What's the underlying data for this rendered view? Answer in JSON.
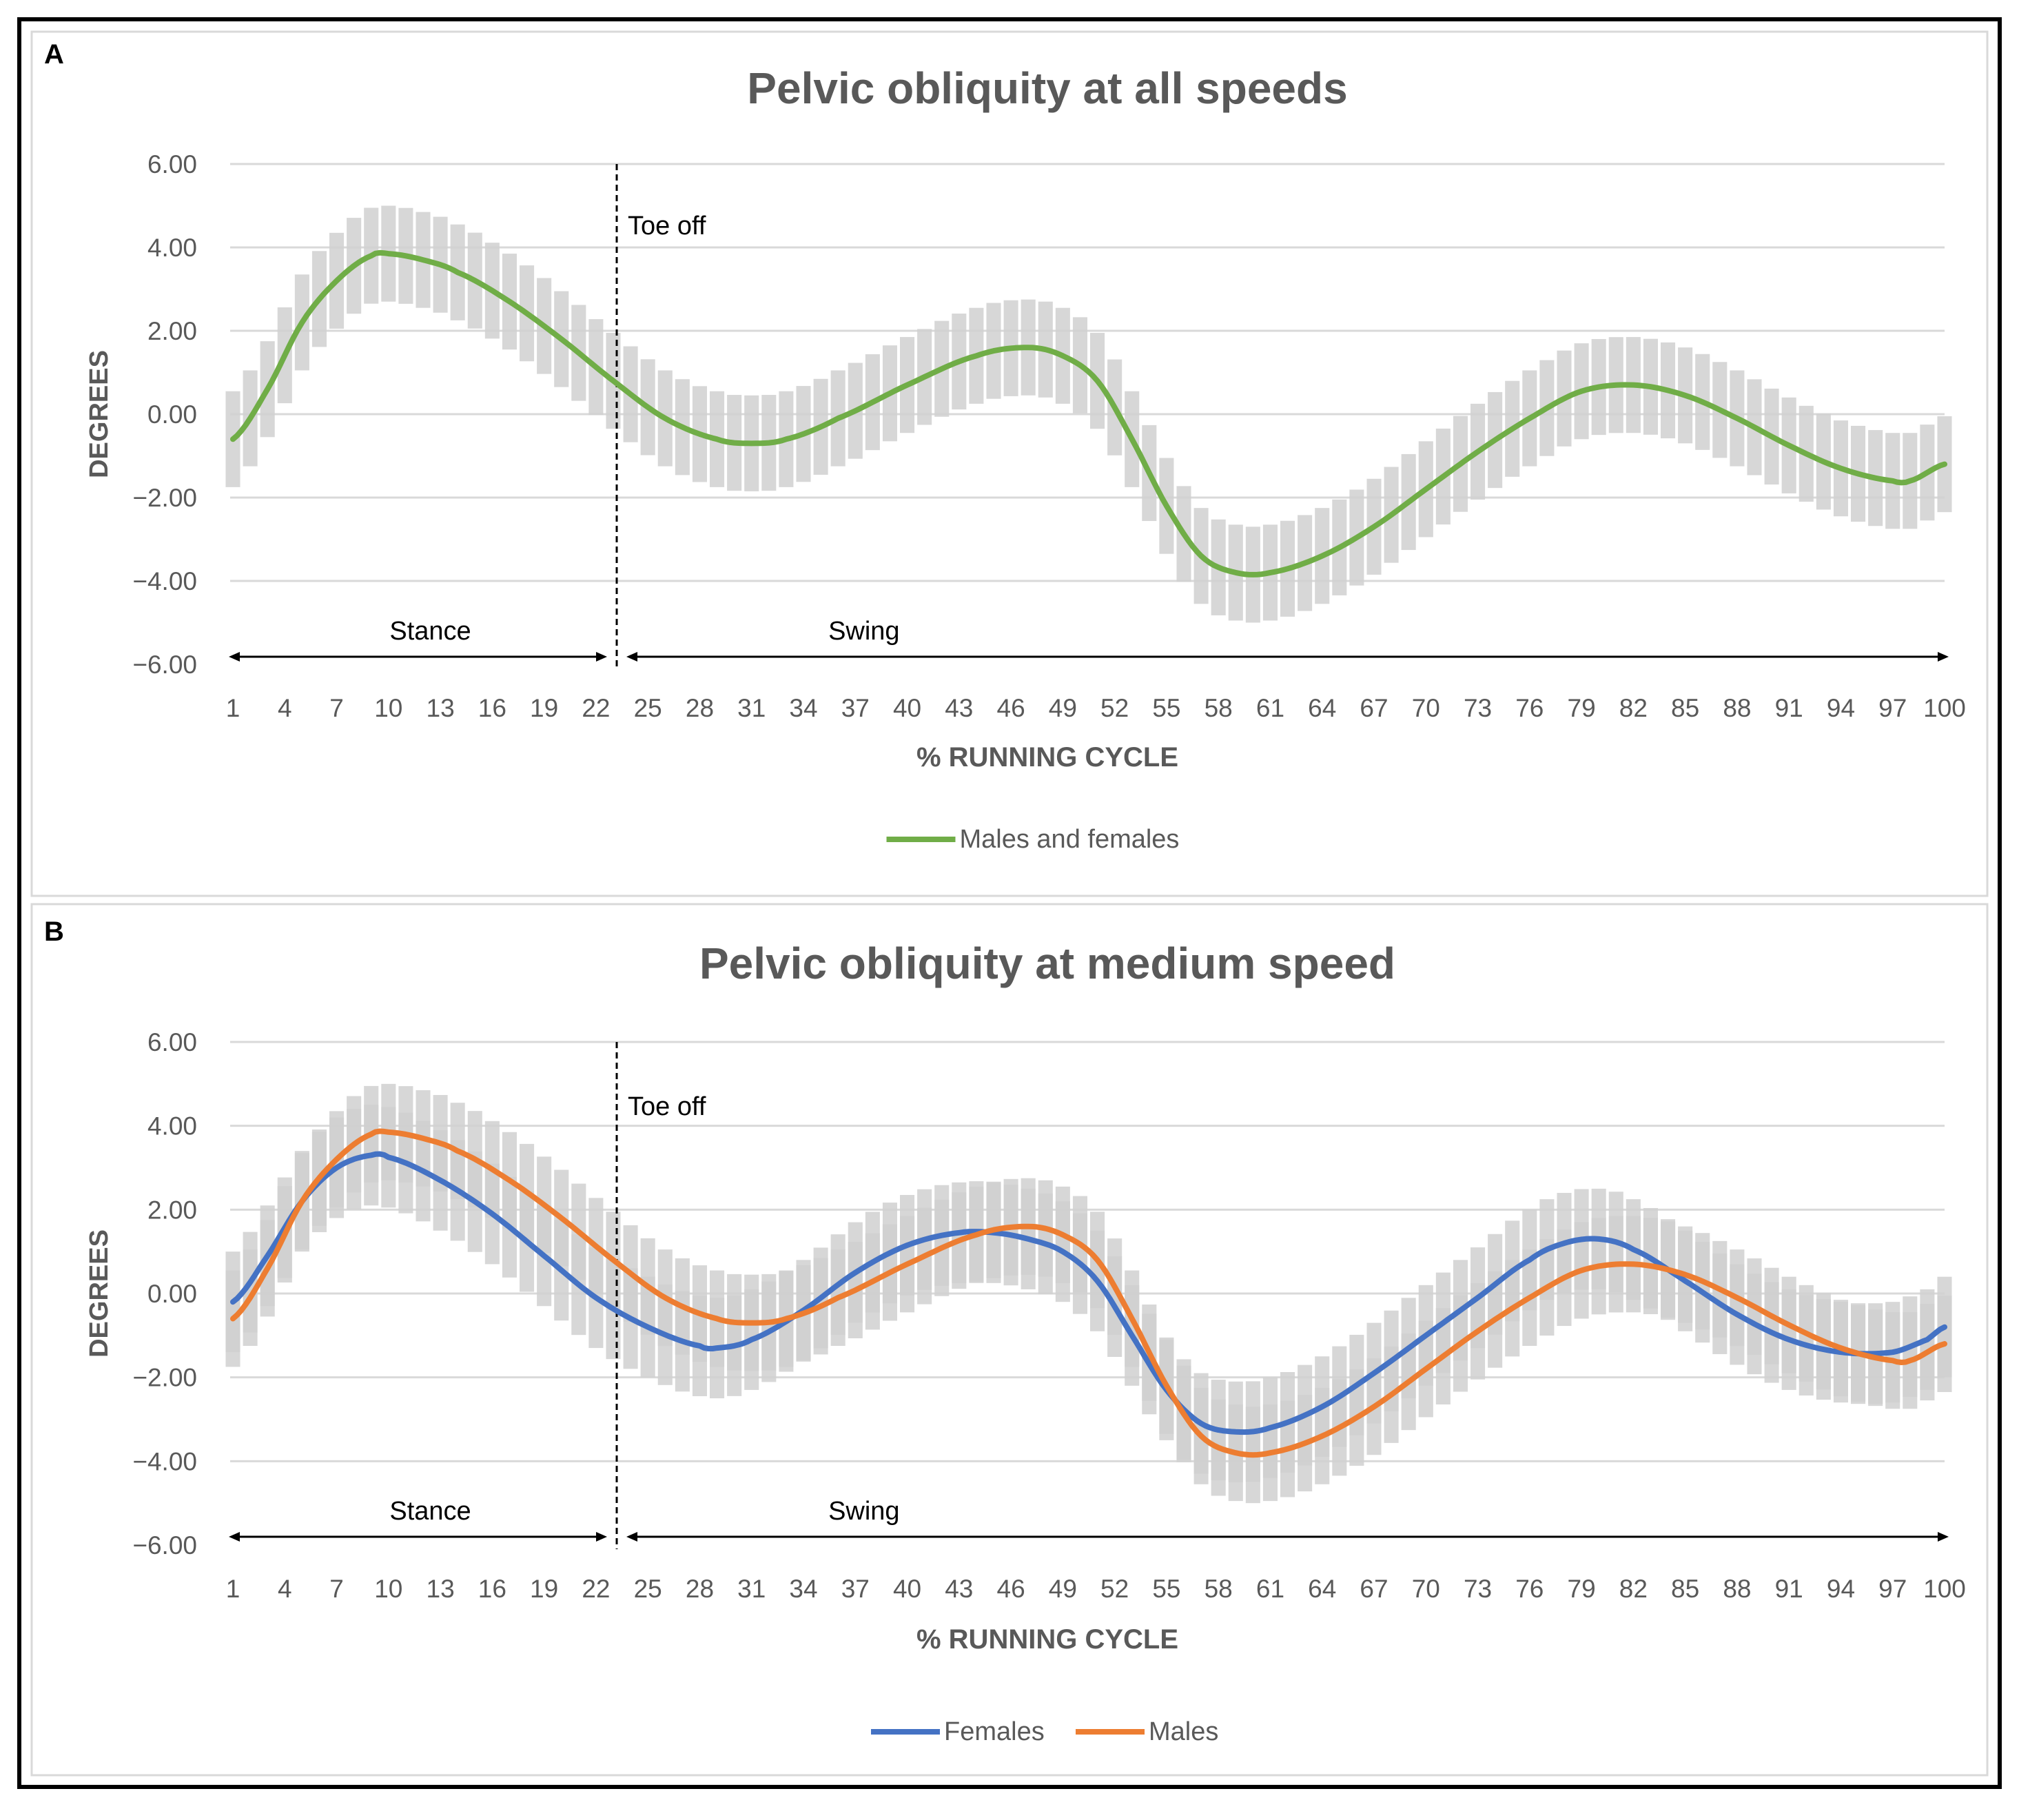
{
  "colors": {
    "males_and_females": "#70AD47",
    "females": "#4472C4",
    "males": "#ED7D31",
    "band": "#D0D0D0",
    "grid": "#D9D9D9",
    "text": "#595959"
  },
  "chart_data": [
    {
      "panel": "A",
      "type": "line",
      "title": "Pelvic obliquity at all speeds",
      "xlabel": "% RUNNING CYCLE",
      "ylabel": "DEGREES",
      "ylim": [
        -6,
        6
      ],
      "xlim": [
        1,
        100
      ],
      "y_ticks": [
        "6.00",
        "4.00",
        "2.00",
        "0.00",
        "−2.00",
        "−4.00",
        "−6.00"
      ],
      "x_ticks": [
        "1",
        "4",
        "7",
        "10",
        "13",
        "16",
        "19",
        "22",
        "25",
        "28",
        "31",
        "34",
        "37",
        "40",
        "43",
        "46",
        "49",
        "52",
        "55",
        "58",
        "61",
        "64",
        "67",
        "70",
        "73",
        "76",
        "79",
        "82",
        "85",
        "88",
        "91",
        "94",
        "97",
        "100"
      ],
      "grid": true,
      "legend_position": "bottom",
      "annotations": {
        "toe_off": "Toe off",
        "stance": "Stance",
        "swing": "Swing",
        "toe_off_at": 23.2
      },
      "series": [
        {
          "name": "Males and females",
          "color_key": "males_and_females",
          "points": [
            [
              1,
              -0.6
            ],
            [
              3,
              0.6
            ],
            [
              5,
              2.2
            ],
            [
              7,
              3.2
            ],
            [
              9,
              3.8
            ],
            [
              10,
              3.85
            ],
            [
              12,
              3.7
            ],
            [
              14,
              3.4
            ],
            [
              17,
              2.7
            ],
            [
              20,
              1.8
            ],
            [
              23,
              0.8
            ],
            [
              26,
              -0.1
            ],
            [
              29,
              -0.6
            ],
            [
              31,
              -0.7
            ],
            [
              33,
              -0.6
            ],
            [
              36,
              -0.1
            ],
            [
              40,
              0.7
            ],
            [
              44,
              1.4
            ],
            [
              47,
              1.6
            ],
            [
              49,
              1.4
            ],
            [
              51,
              0.8
            ],
            [
              53,
              -0.6
            ],
            [
              55,
              -2.2
            ],
            [
              57,
              -3.4
            ],
            [
              59,
              -3.8
            ],
            [
              61,
              -3.8
            ],
            [
              64,
              -3.4
            ],
            [
              67,
              -2.7
            ],
            [
              70,
              -1.8
            ],
            [
              73,
              -0.9
            ],
            [
              76,
              -0.1
            ],
            [
              79,
              0.55
            ],
            [
              82,
              0.7
            ],
            [
              85,
              0.45
            ],
            [
              88,
              -0.1
            ],
            [
              91,
              -0.75
            ],
            [
              94,
              -1.3
            ],
            [
              97,
              -1.6
            ],
            [
              98,
              -1.6
            ],
            [
              100,
              -1.2
            ]
          ],
          "band_width": 1.15
        }
      ],
      "legend": [
        "Males and females"
      ]
    },
    {
      "panel": "B",
      "type": "line",
      "title": "Pelvic obliquity at medium speed",
      "xlabel": "% RUNNING CYCLE",
      "ylabel": "DEGREES",
      "ylim": [
        -6,
        6
      ],
      "xlim": [
        1,
        100
      ],
      "y_ticks": [
        "6.00",
        "4.00",
        "2.00",
        "0.00",
        "−2.00",
        "−4.00",
        "−6.00"
      ],
      "x_ticks": [
        "1",
        "4",
        "7",
        "10",
        "13",
        "16",
        "19",
        "22",
        "25",
        "28",
        "31",
        "34",
        "37",
        "40",
        "43",
        "46",
        "49",
        "52",
        "55",
        "58",
        "61",
        "64",
        "67",
        "70",
        "73",
        "76",
        "79",
        "82",
        "85",
        "88",
        "91",
        "94",
        "97",
        "100"
      ],
      "grid": true,
      "legend_position": "bottom",
      "annotations": {
        "toe_off": "Toe off",
        "stance": "Stance",
        "swing": "Swing",
        "toe_off_at": 23.2
      },
      "series": [
        {
          "name": "Females",
          "color_key": "females",
          "points": [
            [
              1,
              -0.2
            ],
            [
              3,
              0.9
            ],
            [
              5,
              2.2
            ],
            [
              7,
              3.0
            ],
            [
              9,
              3.3
            ],
            [
              10,
              3.25
            ],
            [
              13,
              2.7
            ],
            [
              16,
              1.9
            ],
            [
              19,
              0.9
            ],
            [
              22,
              -0.1
            ],
            [
              25,
              -0.8
            ],
            [
              28,
              -1.25
            ],
            [
              29,
              -1.3
            ],
            [
              31,
              -1.1
            ],
            [
              34,
              -0.4
            ],
            [
              37,
              0.5
            ],
            [
              40,
              1.15
            ],
            [
              43,
              1.45
            ],
            [
              45,
              1.45
            ],
            [
              47,
              1.3
            ],
            [
              49,
              1.0
            ],
            [
              51,
              0.3
            ],
            [
              53,
              -1.0
            ],
            [
              55,
              -2.3
            ],
            [
              57,
              -3.1
            ],
            [
              59,
              -3.3
            ],
            [
              61,
              -3.2
            ],
            [
              64,
              -2.7
            ],
            [
              67,
              -1.9
            ],
            [
              70,
              -1.0
            ],
            [
              73,
              -0.1
            ],
            [
              76,
              0.8
            ],
            [
              78,
              1.2
            ],
            [
              80,
              1.3
            ],
            [
              82,
              1.05
            ],
            [
              85,
              0.3
            ],
            [
              88,
              -0.5
            ],
            [
              91,
              -1.1
            ],
            [
              94,
              -1.4
            ],
            [
              97,
              -1.4
            ],
            [
              99,
              -1.1
            ],
            [
              100,
              -0.8
            ]
          ],
          "band_width": 1.2
        },
        {
          "name": "Males",
          "color_key": "males",
          "points": [
            [
              1,
              -0.6
            ],
            [
              3,
              0.6
            ],
            [
              5,
              2.2
            ],
            [
              7,
              3.2
            ],
            [
              9,
              3.8
            ],
            [
              10,
              3.85
            ],
            [
              12,
              3.7
            ],
            [
              14,
              3.4
            ],
            [
              17,
              2.7
            ],
            [
              20,
              1.8
            ],
            [
              23,
              0.8
            ],
            [
              26,
              -0.1
            ],
            [
              29,
              -0.6
            ],
            [
              31,
              -0.7
            ],
            [
              33,
              -0.6
            ],
            [
              36,
              -0.1
            ],
            [
              40,
              0.7
            ],
            [
              44,
              1.4
            ],
            [
              47,
              1.6
            ],
            [
              49,
              1.4
            ],
            [
              51,
              0.8
            ],
            [
              53,
              -0.6
            ],
            [
              55,
              -2.2
            ],
            [
              57,
              -3.4
            ],
            [
              59,
              -3.8
            ],
            [
              61,
              -3.8
            ],
            [
              64,
              -3.4
            ],
            [
              67,
              -2.7
            ],
            [
              70,
              -1.8
            ],
            [
              73,
              -0.9
            ],
            [
              76,
              -0.1
            ],
            [
              79,
              0.55
            ],
            [
              82,
              0.7
            ],
            [
              85,
              0.45
            ],
            [
              88,
              -0.1
            ],
            [
              91,
              -0.75
            ],
            [
              94,
              -1.3
            ],
            [
              97,
              -1.6
            ],
            [
              98,
              -1.6
            ],
            [
              100,
              -1.2
            ]
          ],
          "band_width": 1.15
        }
      ],
      "legend": [
        "Females",
        "Males"
      ]
    }
  ]
}
